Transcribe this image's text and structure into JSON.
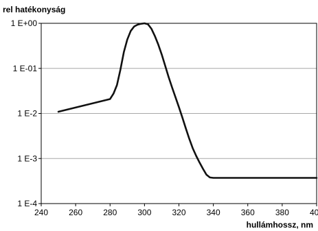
{
  "chart_data": {
    "type": "line",
    "title": "",
    "ylabel": "rel hatékonyság",
    "xlabel": "hullámhossz, nm",
    "x_ticks": [
      240,
      260,
      280,
      300,
      320,
      340,
      360,
      380,
      400
    ],
    "y_ticks": [
      {
        "value": 1,
        "label": "1 E+00"
      },
      {
        "value": 0.1,
        "label": "1 E-01"
      },
      {
        "value": 0.01,
        "label": "1 E-2"
      },
      {
        "value": 0.001,
        "label": "1 E-3"
      },
      {
        "value": 0.0001,
        "label": "1 E-4"
      }
    ],
    "xlim": [
      240,
      400
    ],
    "ylim": [
      0.0001,
      1
    ],
    "y_scale": "log",
    "grid": "horizontal",
    "line_color": "#111111",
    "series": [
      {
        "x": [
          250,
          280,
          282,
          284,
          286,
          288,
          290,
          292,
          294,
          296,
          298,
          300,
          302,
          304,
          306,
          308,
          310,
          312,
          314,
          316,
          318,
          320,
          322,
          324,
          326,
          328,
          330,
          332,
          334,
          336,
          338,
          340,
          345,
          350,
          360,
          370,
          380,
          390,
          400
        ],
        "y": [
          0.0109,
          0.0209,
          0.0275,
          0.0426,
          0.0933,
          0.229,
          0.436,
          0.676,
          0.851,
          0.933,
          0.977,
          1.0,
          0.955,
          0.759,
          0.525,
          0.339,
          0.204,
          0.115,
          0.0646,
          0.038,
          0.0229,
          0.0138,
          0.00813,
          0.00468,
          0.00275,
          0.0017,
          0.00115,
          0.000813,
          0.000589,
          0.000437,
          0.00038,
          0.000372,
          0.000372,
          0.000372,
          0.000372,
          0.000372,
          0.000372,
          0.000372,
          0.000372
        ]
      }
    ]
  }
}
